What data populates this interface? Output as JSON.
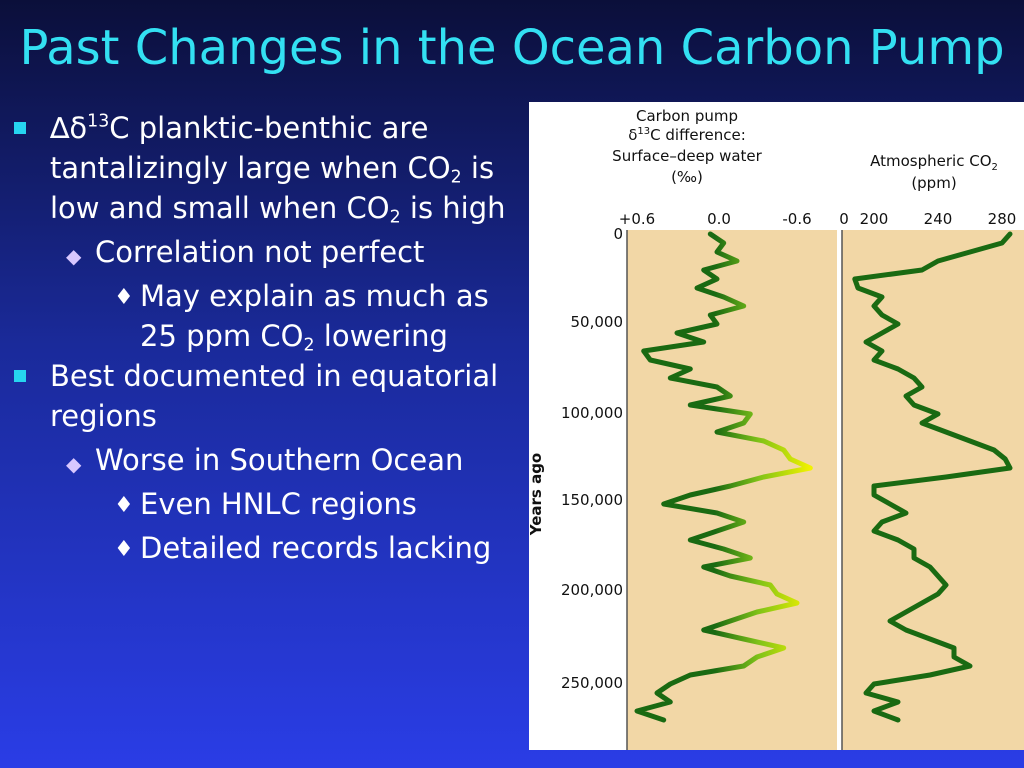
{
  "slide": {
    "title": "Past Changes in the Ocean Carbon Pump",
    "bullets": [
      {
        "l1_a": "∆δ",
        "l1_sup": "13",
        "l1_b": "C planktic-benthic are tantalizingly large when CO",
        "l1_sub1": "2",
        "l1_c": " is low and small when CO",
        "l1_sub2": "2",
        "l1_d": " is high"
      },
      {
        "l2": "Correlation not perfect"
      },
      {
        "l3_a": "May explain as much as 25 ppm CO",
        "l3_sub": "2",
        "l3_b": " lowering"
      },
      {
        "l1": "Best documented in equatorial regions"
      },
      {
        "l2": "Worse in Southern Ocean"
      },
      {
        "l3": "Even HNLC regions"
      },
      {
        "l3": "Detailed records lacking"
      }
    ]
  },
  "colors": {
    "title": "#33e0f2",
    "panel": "#f2d7a6",
    "line_dark": "#1a6a12",
    "line_light": "#f2f200",
    "bullet_square": "#26d5f0"
  },
  "chart_data": {
    "type": "line",
    "ylabel": "Years ago",
    "yticks": [
      "0",
      "50,000",
      "100,000",
      "150,000",
      "200,000",
      "250,000"
    ],
    "yrange": [
      0,
      270000
    ],
    "panels": [
      {
        "title_l1": "Carbon pump",
        "title_l2_a": "δ",
        "title_l2_sup": "13",
        "title_l2_b": "C difference:",
        "title_l3": "Surface–deep water",
        "title_l4": "(‰)",
        "xticks": [
          "+0.6",
          "0.0",
          "-0.6"
        ],
        "xrange": [
          0.6,
          -0.6
        ],
        "series": {
          "y": [
            0,
            5000,
            10000,
            15000,
            20000,
            25000,
            30000,
            35000,
            40000,
            45000,
            50000,
            55000,
            60000,
            65000,
            70000,
            75000,
            80000,
            85000,
            90000,
            95000,
            100000,
            105000,
            110000,
            115000,
            120000,
            125000,
            130000,
            135000,
            140000,
            145000,
            150000,
            155000,
            160000,
            165000,
            170000,
            175000,
            180000,
            185000,
            190000,
            195000,
            200000,
            205000,
            210000,
            215000,
            220000,
            225000,
            230000,
            235000,
            240000,
            245000,
            250000,
            255000,
            260000,
            265000,
            270000
          ],
          "x": [
            0.05,
            -0.05,
            0.0,
            -0.15,
            0.1,
            0.0,
            0.15,
            -0.05,
            -0.2,
            0.05,
            0.0,
            0.3,
            0.1,
            0.55,
            0.5,
            0.2,
            0.35,
            0.0,
            -0.1,
            0.2,
            -0.25,
            -0.2,
            0.0,
            -0.35,
            -0.5,
            -0.55,
            -0.7,
            -0.35,
            -0.1,
            0.2,
            0.4,
            0.0,
            -0.2,
            0.0,
            0.2,
            -0.05,
            -0.25,
            0.1,
            -0.1,
            -0.4,
            -0.45,
            -0.6,
            -0.3,
            -0.1,
            0.1,
            -0.2,
            -0.5,
            -0.3,
            -0.2,
            0.2,
            0.35,
            0.45,
            0.35,
            0.6,
            0.4
          ]
        }
      },
      {
        "title_l1": "Atmospheric CO",
        "title_l1_sub": "2",
        "title_l2": "(ppm)",
        "xticks": [
          "0",
          "200",
          "240",
          "280"
        ],
        "xrange": [
          180,
          290
        ],
        "series": {
          "y": [
            0,
            5000,
            10000,
            15000,
            20000,
            25000,
            30000,
            35000,
            40000,
            45000,
            50000,
            55000,
            60000,
            65000,
            70000,
            75000,
            80000,
            85000,
            90000,
            95000,
            100000,
            105000,
            110000,
            115000,
            120000,
            125000,
            130000,
            135000,
            140000,
            145000,
            150000,
            155000,
            160000,
            165000,
            170000,
            175000,
            180000,
            185000,
            190000,
            195000,
            200000,
            205000,
            210000,
            215000,
            220000,
            225000,
            230000,
            235000,
            240000,
            245000,
            250000,
            255000,
            260000,
            265000,
            270000
          ],
          "x": [
            285,
            280,
            260,
            240,
            230,
            188,
            190,
            205,
            200,
            205,
            215,
            205,
            195,
            205,
            200,
            215,
            225,
            230,
            220,
            225,
            240,
            230,
            245,
            260,
            275,
            282,
            285,
            245,
            200,
            200,
            210,
            220,
            205,
            200,
            215,
            225,
            225,
            235,
            240,
            245,
            240,
            230,
            220,
            210,
            220,
            235,
            250,
            250,
            260,
            235,
            200,
            195,
            215,
            200,
            215
          ]
        }
      }
    ]
  }
}
